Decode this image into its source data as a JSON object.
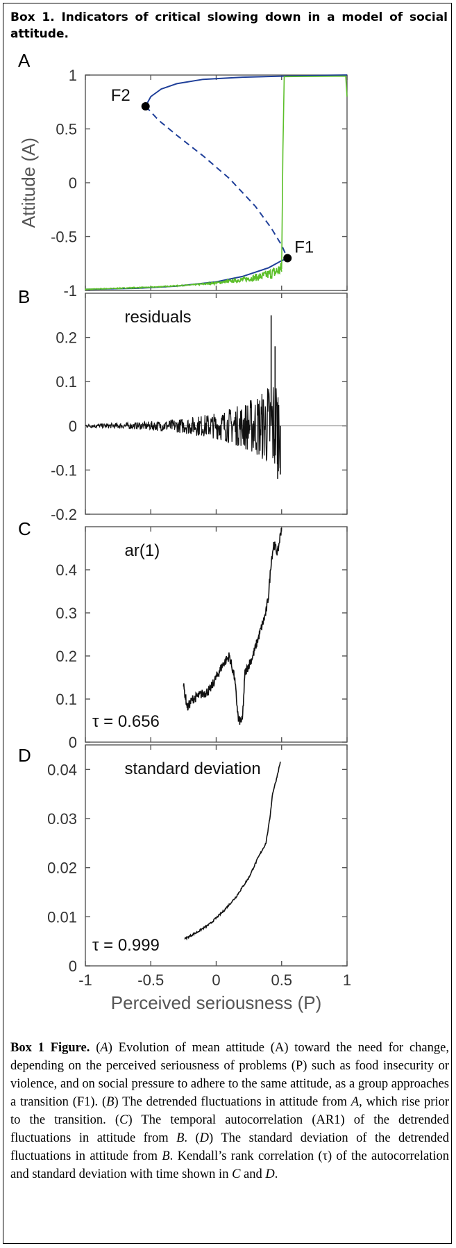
{
  "box_title": "Box 1.  Indicators of critical slowing down in a model of social attitude.",
  "caption": {
    "label": "Box 1 Figure.",
    "segments": [
      {
        "t": " (",
        "i": false
      },
      {
        "t": "A",
        "i": true
      },
      {
        "t": ") Evolution of mean attitude (A) toward the need for change, depending on the perceived seriousness of problems (P) such as food insecurity or violence, and on social pressure to adhere to the same attitude, as a group approaches a transition (F1). (",
        "i": false
      },
      {
        "t": "B",
        "i": true
      },
      {
        "t": ") The detrended fluctuations in attitude from ",
        "i": false
      },
      {
        "t": "A",
        "i": true
      },
      {
        "t": ", which rise prior to the transition. (",
        "i": false
      },
      {
        "t": "C",
        "i": true
      },
      {
        "t": ") The temporal autocorrelation (AR1) of the detrended fluctuations in attitude from ",
        "i": false
      },
      {
        "t": "B",
        "i": true
      },
      {
        "t": ". (",
        "i": false
      },
      {
        "t": "D",
        "i": true
      },
      {
        "t": ") The standard deviation of the detrended fluctuations in attitude from ",
        "i": false
      },
      {
        "t": "B",
        "i": true
      },
      {
        "t": ". Kendall’s rank correlation (τ) of the autocorrelation and standard deviation with time shown in ",
        "i": false
      },
      {
        "t": "C",
        "i": true
      },
      {
        "t": " and ",
        "i": false
      },
      {
        "t": "D",
        "i": true
      },
      {
        "t": ".",
        "i": false
      }
    ]
  },
  "colors": {
    "blue": "#1f3f99",
    "green": "#5cbf2a",
    "black": "#111111",
    "axis": "#555555"
  },
  "chart_data": [
    {
      "panel": "A",
      "type": "line",
      "ylabel": "Attitude (A)",
      "xlim": [
        -1,
        1
      ],
      "ylim": [
        -1,
        1
      ],
      "yticks": [
        {
          "v": 1,
          "label": "1"
        },
        {
          "v": 0.5,
          "label": "0.5"
        },
        {
          "v": 0,
          "label": "0"
        },
        {
          "v": -0.5,
          "label": "-0.5"
        },
        {
          "v": -1,
          "label": "-1"
        }
      ],
      "series": [
        {
          "style": "solid",
          "color": "blue",
          "points": [
            [
              -0.54,
              0.71
            ],
            [
              -0.5,
              0.8
            ],
            [
              -0.42,
              0.87
            ],
            [
              -0.3,
              0.92
            ],
            [
              -0.1,
              0.96
            ],
            [
              0.2,
              0.98
            ],
            [
              0.5,
              0.99
            ],
            [
              1.0,
              1.0
            ]
          ]
        },
        {
          "style": "dashed",
          "color": "blue",
          "points": [
            [
              -0.54,
              0.71
            ],
            [
              -0.44,
              0.58
            ],
            [
              -0.3,
              0.44
            ],
            [
              -0.1,
              0.25
            ],
            [
              0.1,
              0.04
            ],
            [
              0.3,
              -0.22
            ],
            [
              0.42,
              -0.42
            ],
            [
              0.5,
              -0.58
            ],
            [
              0.545,
              -0.7
            ]
          ]
        },
        {
          "style": "solid",
          "color": "blue",
          "points": [
            [
              0.545,
              -0.7
            ],
            [
              0.49,
              -0.73
            ],
            [
              0.4,
              -0.79
            ],
            [
              0.2,
              -0.87
            ],
            [
              0.0,
              -0.92
            ],
            [
              -0.3,
              -0.96
            ],
            [
              -0.6,
              -0.98
            ],
            [
              -1.0,
              -0.99
            ]
          ]
        },
        {
          "style": "noisy",
          "color": "green",
          "points": [
            [
              -1.0,
              -0.99
            ],
            [
              -0.5,
              -0.97
            ],
            [
              -0.2,
              -0.95
            ],
            [
              0.0,
              -0.93
            ],
            [
              0.2,
              -0.9
            ],
            [
              0.35,
              -0.87
            ],
            [
              0.45,
              -0.83
            ],
            [
              0.5,
              -0.8
            ]
          ],
          "noise": [
            0.004,
            0.07
          ]
        },
        {
          "style": "solid",
          "color": "green",
          "points": [
            [
              0.5,
              -0.8
            ],
            [
              0.51,
              0.3
            ],
            [
              0.52,
              0.985
            ],
            [
              0.99,
              0.99
            ],
            [
              1.0,
              0.8
            ]
          ]
        }
      ],
      "points": [
        {
          "label": "F2",
          "x": -0.54,
          "y": 0.71
        },
        {
          "label": "F1",
          "x": 0.545,
          "y": -0.7
        }
      ]
    },
    {
      "panel": "B",
      "type": "line",
      "title": "residuals",
      "xlim": [
        -1,
        1
      ],
      "ylim": [
        -0.2,
        0.3
      ],
      "yticks": [
        {
          "v": 0.2,
          "label": "0.2"
        },
        {
          "v": 0.1,
          "label": "0.1"
        },
        {
          "v": 0,
          "label": "0"
        },
        {
          "v": -0.1,
          "label": "-0.1"
        },
        {
          "v": -0.2,
          "label": "-0.2"
        }
      ],
      "zero_line": true,
      "envelope": [
        [
          -1.0,
          0.004
        ],
        [
          -0.6,
          0.008
        ],
        [
          -0.3,
          0.015
        ],
        [
          0.0,
          0.03
        ],
        [
          0.2,
          0.05
        ],
        [
          0.35,
          0.08
        ],
        [
          0.45,
          0.12
        ],
        [
          0.48,
          0.1
        ]
      ],
      "spikes": [
        {
          "x": 0.42,
          "y": 0.25
        },
        {
          "x": 0.45,
          "y": 0.18
        },
        {
          "x": 0.47,
          "y": -0.12
        },
        {
          "x": 0.49,
          "y": -0.11
        }
      ]
    },
    {
      "panel": "C",
      "type": "line",
      "title": "ar(1)",
      "annotation": "τ = 0.656",
      "xlim": [
        -1,
        1
      ],
      "ylim": [
        0,
        0.5
      ],
      "yticks": [
        {
          "v": 0.4,
          "label": "0.4"
        },
        {
          "v": 0.3,
          "label": "0.3"
        },
        {
          "v": 0.2,
          "label": "0.2"
        },
        {
          "v": 0.1,
          "label": "0.1"
        },
        {
          "v": 0,
          "label": "0"
        }
      ],
      "points": [
        [
          -0.25,
          0.13
        ],
        [
          -0.22,
          0.08
        ],
        [
          -0.18,
          0.1
        ],
        [
          -0.12,
          0.11
        ],
        [
          -0.05,
          0.12
        ],
        [
          0.05,
          0.18
        ],
        [
          0.1,
          0.2
        ],
        [
          0.14,
          0.15
        ],
        [
          0.17,
          0.05
        ],
        [
          0.2,
          0.05
        ],
        [
          0.22,
          0.16
        ],
        [
          0.28,
          0.2
        ],
        [
          0.34,
          0.26
        ],
        [
          0.38,
          0.3
        ],
        [
          0.4,
          0.34
        ],
        [
          0.42,
          0.42
        ],
        [
          0.44,
          0.46
        ],
        [
          0.47,
          0.44
        ],
        [
          0.5,
          0.5
        ]
      ]
    },
    {
      "panel": "D",
      "type": "line",
      "title": "standard deviation",
      "annotation": "τ = 0.999",
      "xlabel": "Perceived seriousness (P)",
      "xlim": [
        -1,
        1
      ],
      "ylim": [
        0,
        0.045
      ],
      "yticks": [
        {
          "v": 0.04,
          "label": "0.04"
        },
        {
          "v": 0.03,
          "label": "0.03"
        },
        {
          "v": 0.02,
          "label": "0.02"
        },
        {
          "v": 0.01,
          "label": "0.01"
        },
        {
          "v": 0,
          "label": "0"
        }
      ],
      "xticks": [
        {
          "v": -1,
          "label": "-1"
        },
        {
          "v": -0.5,
          "label": "-0.5"
        },
        {
          "v": 0,
          "label": "0"
        },
        {
          "v": 0.5,
          "label": "0.5"
        },
        {
          "v": 1,
          "label": "1"
        }
      ],
      "points": [
        [
          -0.24,
          0.0055
        ],
        [
          -0.15,
          0.0068
        ],
        [
          -0.05,
          0.0085
        ],
        [
          0.05,
          0.011
        ],
        [
          0.15,
          0.014
        ],
        [
          0.25,
          0.018
        ],
        [
          0.32,
          0.022
        ],
        [
          0.38,
          0.025
        ],
        [
          0.41,
          0.03
        ],
        [
          0.43,
          0.035
        ],
        [
          0.46,
          0.038
        ],
        [
          0.49,
          0.0415
        ]
      ]
    }
  ]
}
